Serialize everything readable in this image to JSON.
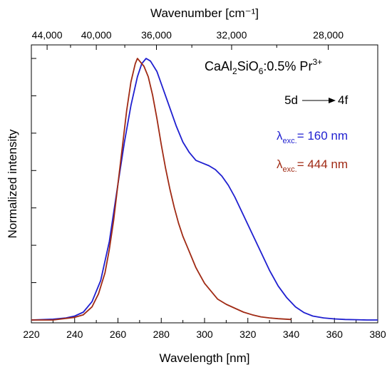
{
  "chart_data": {
    "type": "line",
    "title": "",
    "xlabel": "Wavelength [nm]",
    "ylabel": "Normalized intensity",
    "top_axis_label": "Wavenumber [cm⁻¹]",
    "xlim": [
      220,
      380
    ],
    "ylim": [
      0,
      1.0
    ],
    "x_ticks": [
      "220",
      "240",
      "260",
      "280",
      "300",
      "320",
      "340",
      "360",
      "380"
    ],
    "top_ticks": [
      {
        "value": 44000,
        "label": "44,000"
      },
      {
        "value": 40000,
        "label": "40,000"
      },
      {
        "value": 36000,
        "label": "36,000"
      },
      {
        "value": 32000,
        "label": "32,000"
      },
      {
        "value": 28000,
        "label": "28,000"
      }
    ],
    "y_tick_count": 7,
    "grid": false,
    "legend_placement": "right",
    "annotations": {
      "compound_parts": [
        "CaAl",
        "2",
        "SiO",
        "6",
        ":0.5% Pr",
        "3+"
      ],
      "transition_from": "5d",
      "transition_to": "4f"
    },
    "series": [
      {
        "name_sym": "λ",
        "name_sub": "exc.",
        "name_text": "= 160 nm",
        "color": "#1f1fd0",
        "x": [
          220,
          230,
          236,
          240,
          244,
          248,
          252,
          256,
          260,
          263,
          266,
          269,
          271,
          273,
          275,
          278,
          281,
          284,
          287,
          290,
          293,
          296,
          299,
          302,
          305,
          308,
          311,
          314,
          318,
          322,
          326,
          330,
          334,
          338,
          342,
          346,
          350,
          355,
          360,
          365,
          370,
          375,
          380
        ],
        "y": [
          0.0,
          0.003,
          0.008,
          0.015,
          0.03,
          0.07,
          0.15,
          0.3,
          0.52,
          0.68,
          0.82,
          0.93,
          0.98,
          1.0,
          0.99,
          0.95,
          0.88,
          0.81,
          0.74,
          0.68,
          0.64,
          0.61,
          0.6,
          0.59,
          0.575,
          0.55,
          0.515,
          0.47,
          0.4,
          0.33,
          0.26,
          0.19,
          0.13,
          0.085,
          0.05,
          0.028,
          0.015,
          0.008,
          0.004,
          0.002,
          0.001,
          0.0,
          0.0
        ]
      },
      {
        "name_sym": "λ",
        "name_sub": "exc.",
        "name_text": "= 444 nm",
        "color": "#a02a14",
        "x": [
          220,
          230,
          240,
          244,
          248,
          251,
          254,
          256,
          258,
          260,
          262,
          264,
          266,
          268,
          269,
          270,
          272,
          274,
          276,
          278,
          280,
          282,
          284,
          286,
          288,
          290,
          292,
          294,
          296,
          298,
          300,
          303,
          306,
          310,
          314,
          318,
          322,
          326,
          330,
          334,
          340
        ],
        "y": [
          0.0,
          0.0,
          0.01,
          0.02,
          0.05,
          0.1,
          0.18,
          0.27,
          0.38,
          0.52,
          0.66,
          0.8,
          0.91,
          0.98,
          1.0,
          0.99,
          0.97,
          0.93,
          0.86,
          0.77,
          0.67,
          0.58,
          0.5,
          0.43,
          0.37,
          0.32,
          0.28,
          0.24,
          0.2,
          0.17,
          0.14,
          0.11,
          0.08,
          0.06,
          0.045,
          0.03,
          0.02,
          0.012,
          0.008,
          0.005,
          0.002
        ]
      }
    ]
  }
}
